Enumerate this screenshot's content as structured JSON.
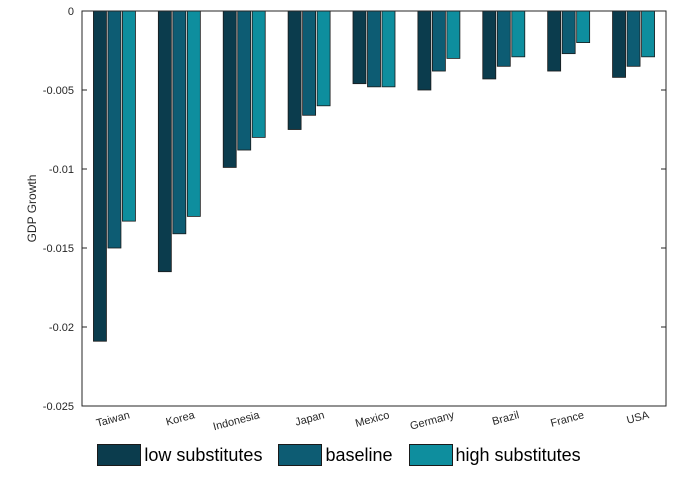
{
  "chart_data": {
    "type": "bar",
    "title": "",
    "xlabel": "",
    "ylabel": "GDP Growth",
    "ylim": [
      -0.025,
      0
    ],
    "yticks": [
      0,
      -0.005,
      -0.01,
      -0.015,
      -0.02,
      -0.025
    ],
    "ytick_labels": [
      "0",
      "-0.005",
      "-0.01",
      "-0.015",
      "-0.02",
      "-0.025"
    ],
    "categories": [
      "Taiwan",
      "Korea",
      "Indonesia",
      "Japan",
      "Mexico",
      "Germany",
      "Brazil",
      "France",
      "USA"
    ],
    "series": [
      {
        "name": "low substitutes",
        "color": "#0b3c4d",
        "values": [
          -0.0209,
          -0.0165,
          -0.0099,
          -0.0075,
          -0.0046,
          -0.005,
          -0.0043,
          -0.0038,
          -0.0042
        ]
      },
      {
        "name": "baseline",
        "color": "#0d5c73",
        "values": [
          -0.015,
          -0.0141,
          -0.0088,
          -0.0066,
          -0.0048,
          -0.0038,
          -0.0035,
          -0.0027,
          -0.0035
        ]
      },
      {
        "name": "high substitutes",
        "color": "#0e8e9e",
        "values": [
          -0.0133,
          -0.013,
          -0.008,
          -0.006,
          -0.0048,
          -0.003,
          -0.0029,
          -0.002,
          -0.0029
        ]
      }
    ],
    "legend_position": "bottom",
    "grid": false
  }
}
